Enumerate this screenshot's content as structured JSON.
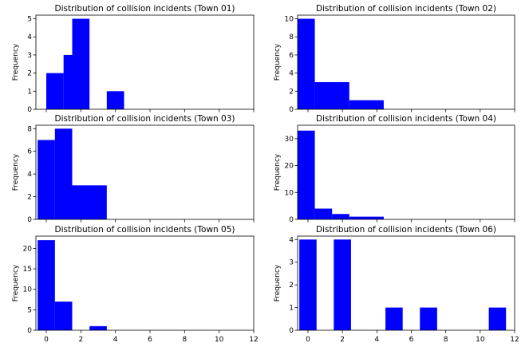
{
  "chart_data": [
    {
      "type": "bar",
      "title": "Distribution of collision incidents (Town 01)",
      "ylabel": "Frequency",
      "xlabel": "",
      "xlim": [
        -0.6,
        12.0
      ],
      "ylim": [
        0,
        5.2
      ],
      "yticks": [
        0,
        1,
        2,
        3,
        4,
        5
      ],
      "xticks": [
        0,
        2,
        4,
        6,
        8,
        10,
        12
      ],
      "show_xtick_labels": false,
      "bins": [
        {
          "x0": 0.0,
          "x1": 1.0,
          "value": 2
        },
        {
          "x0": 1.0,
          "x1": 1.5,
          "value": 3
        },
        {
          "x0": 1.5,
          "x1": 2.5,
          "value": 5
        },
        {
          "x0": 3.5,
          "x1": 4.5,
          "value": 1
        }
      ]
    },
    {
      "type": "bar",
      "title": "Distribution of collision incidents (Town 02)",
      "ylabel": "Frequency",
      "xlabel": "",
      "xlim": [
        -0.6,
        12.0
      ],
      "ylim": [
        0,
        10.4
      ],
      "yticks": [
        0,
        2,
        4,
        6,
        8,
        10
      ],
      "xticks": [
        0,
        2,
        4,
        6,
        8,
        10,
        12
      ],
      "show_xtick_labels": false,
      "bins": [
        {
          "x0": -0.6,
          "x1": 0.4,
          "value": 10
        },
        {
          "x0": 0.4,
          "x1": 2.4,
          "value": 3
        },
        {
          "x0": 2.4,
          "x1": 4.4,
          "value": 1
        }
      ]
    },
    {
      "type": "bar",
      "title": "Distribution of collision incidents (Town 03)",
      "ylabel": "Frequency",
      "xlabel": "",
      "xlim": [
        -0.6,
        12.0
      ],
      "ylim": [
        0,
        8.3
      ],
      "yticks": [
        0,
        2,
        4,
        6,
        8
      ],
      "xticks": [
        0,
        2,
        4,
        6,
        8,
        10,
        12
      ],
      "show_xtick_labels": false,
      "bins": [
        {
          "x0": -0.5,
          "x1": 0.5,
          "value": 7
        },
        {
          "x0": 0.5,
          "x1": 1.5,
          "value": 8
        },
        {
          "x0": 1.5,
          "x1": 3.5,
          "value": 3
        }
      ]
    },
    {
      "type": "bar",
      "title": "Distribution of collision incidents (Town 04)",
      "ylabel": "Frequency",
      "xlabel": "",
      "xlim": [
        -0.6,
        12.0
      ],
      "ylim": [
        0,
        35
      ],
      "yticks": [
        0,
        10,
        20,
        30
      ],
      "xticks": [
        0,
        2,
        4,
        6,
        8,
        10,
        12
      ],
      "show_xtick_labels": false,
      "bins": [
        {
          "x0": -0.6,
          "x1": 0.4,
          "value": 33
        },
        {
          "x0": 0.4,
          "x1": 1.4,
          "value": 4
        },
        {
          "x0": 1.4,
          "x1": 2.4,
          "value": 2
        },
        {
          "x0": 2.4,
          "x1": 4.4,
          "value": 1
        }
      ]
    },
    {
      "type": "bar",
      "title": "Distribution of collision incidents (Town 05)",
      "ylabel": "Frequency",
      "xlabel": "",
      "xlim": [
        -0.6,
        12.0
      ],
      "ylim": [
        0,
        23
      ],
      "yticks": [
        0,
        5,
        10,
        15,
        20
      ],
      "xticks": [
        0,
        2,
        4,
        6,
        8,
        10,
        12
      ],
      "xtick_labels": [
        "0",
        "2",
        "4",
        "6",
        "8",
        "10",
        "12"
      ],
      "show_xtick_labels": true,
      "bins": [
        {
          "x0": -0.5,
          "x1": 0.5,
          "value": 22
        },
        {
          "x0": 0.5,
          "x1": 1.5,
          "value": 7
        },
        {
          "x0": 2.5,
          "x1": 3.5,
          "value": 1
        }
      ]
    },
    {
      "type": "bar",
      "title": "Distribution of collision incidents (Town 06)",
      "ylabel": "Frequency",
      "xlabel": "",
      "xlim": [
        -0.6,
        12.0
      ],
      "ylim": [
        0,
        4.15
      ],
      "yticks": [
        0,
        1,
        2,
        3,
        4
      ],
      "xticks": [
        0,
        2,
        4,
        6,
        8,
        10,
        12
      ],
      "xtick_labels": [
        "0",
        "2",
        "4",
        "6",
        "8",
        "10",
        "12"
      ],
      "show_xtick_labels": true,
      "bins": [
        {
          "x0": -0.5,
          "x1": 0.5,
          "value": 4
        },
        {
          "x0": 1.5,
          "x1": 2.5,
          "value": 4
        },
        {
          "x0": 4.5,
          "x1": 5.5,
          "value": 1
        },
        {
          "x0": 6.5,
          "x1": 7.5,
          "value": 1
        },
        {
          "x0": 10.5,
          "x1": 11.5,
          "value": 1
        }
      ]
    }
  ],
  "colors": {
    "bar": "#0000ff",
    "axis": "#000000",
    "background": "#ffffff"
  }
}
